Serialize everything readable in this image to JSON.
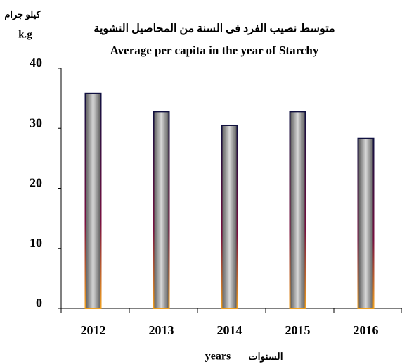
{
  "chart_data": {
    "type": "bar",
    "title_ar": "متوسط نصيب الفرد فى السنة من المحاصيل النشوية",
    "title": "Average per capita in the year of  Starchy",
    "y_unit_ar": "كيلو جرام",
    "y_unit": "k.g",
    "x_label": "years",
    "x_label_ar": "السنوات",
    "categories": [
      "2012",
      "2013",
      "2014",
      "2015",
      "2016"
    ],
    "values": [
      35.8,
      32.8,
      30.5,
      32.8,
      28.3
    ],
    "color": "#9a9a9a",
    "ylim": [
      0,
      40
    ],
    "yticks": [
      0,
      10,
      20,
      30,
      40
    ],
    "grid": false
  }
}
